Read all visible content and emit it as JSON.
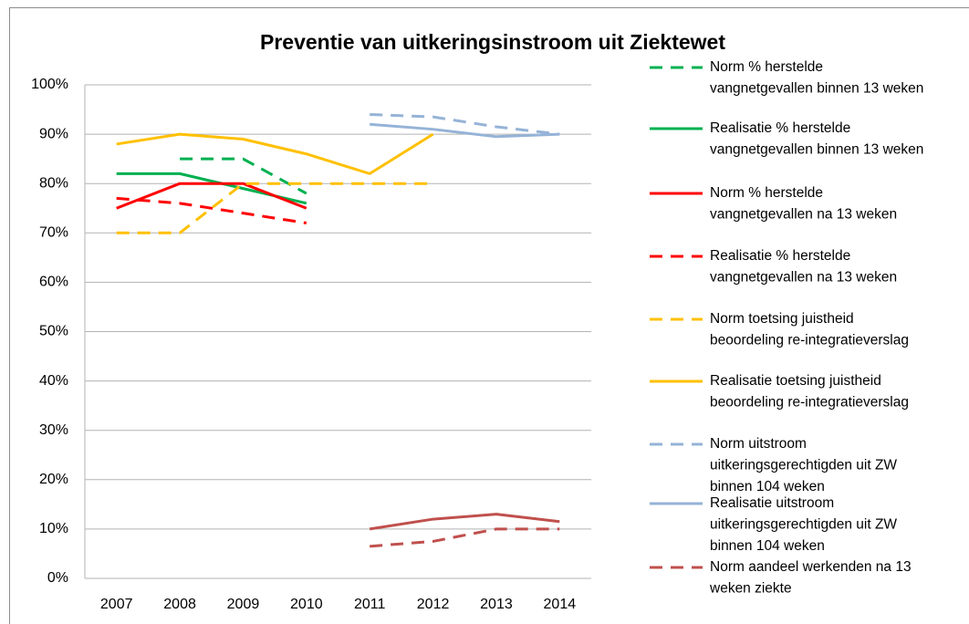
{
  "chart_data": {
    "type": "line",
    "title": "Preventie van uitkeringsinstroom uit Ziektewet",
    "categories": [
      "2007",
      "2008",
      "2009",
      "2010",
      "2011",
      "2012",
      "2013",
      "2014"
    ],
    "ylim": [
      0,
      100
    ],
    "yticks": [
      {
        "value": 0,
        "label": "0%"
      },
      {
        "value": 10,
        "label": "10%"
      },
      {
        "value": 20,
        "label": "20%"
      },
      {
        "value": 30,
        "label": "30%"
      },
      {
        "value": 40,
        "label": "40%"
      },
      {
        "value": 50,
        "label": "50%"
      },
      {
        "value": 60,
        "label": "60%"
      },
      {
        "value": 70,
        "label": "70%"
      },
      {
        "value": 80,
        "label": "80%"
      },
      {
        "value": 90,
        "label": "90%"
      },
      {
        "value": 100,
        "label": "100%"
      }
    ],
    "grid": true,
    "legend": "right",
    "series": [
      {
        "name": [
          "Norm % herstelde",
          "vangnetgevallen binnen 13 weken"
        ],
        "color": "#00b050",
        "dashed": true,
        "values": [
          null,
          85,
          85,
          78,
          null,
          null,
          null,
          null
        ]
      },
      {
        "name": [
          "Realisatie  % herstelde",
          "vangnetgevallen binnen 13 weken"
        ],
        "color": "#00b050",
        "dashed": false,
        "values": [
          82,
          82,
          79,
          76,
          null,
          null,
          null,
          null
        ]
      },
      {
        "name": [
          "Norm % herstelde",
          "vangnetgevallen na 13 weken"
        ],
        "color": "#ff0000",
        "dashed": false,
        "values": [
          75,
          80,
          80,
          75,
          null,
          null,
          null,
          null
        ]
      },
      {
        "name": [
          "Realisatie % herstelde",
          "vangnetgevallen na 13 weken"
        ],
        "color": "#ff0000",
        "dashed": true,
        "values": [
          77,
          76,
          74,
          72,
          null,
          null,
          null,
          null
        ]
      },
      {
        "name": [
          "Norm toetsing juistheid",
          "beoordeling re-integratieverslag"
        ],
        "color": "#ffc000",
        "dashed": true,
        "values": [
          70,
          70,
          80,
          80,
          80,
          80,
          null,
          null
        ]
      },
      {
        "name": [
          "Realisatie toetsing juistheid",
          "beoordeling re-integratieverslag"
        ],
        "color": "#ffc000",
        "dashed": false,
        "values": [
          88,
          90,
          89,
          86,
          82,
          90,
          null,
          null
        ]
      },
      {
        "name": [
          "Norm uitstroom",
          "uitkeringsgerechtigden uit ZW",
          "binnen 104 weken"
        ],
        "color": "#95b3d7",
        "dashed": true,
        "values": [
          null,
          null,
          null,
          null,
          94,
          93.5,
          91.5,
          90
        ]
      },
      {
        "name": [
          "Realisatie uitstroom",
          "uitkeringsgerechtigden uit ZW",
          "binnen 104 weken"
        ],
        "color": "#95b3d7",
        "dashed": false,
        "values": [
          null,
          null,
          null,
          null,
          92,
          91,
          89.5,
          90
        ]
      },
      {
        "name": [
          "Norm aandeel werkenden na 13",
          "weken ziekte"
        ],
        "color": "#c0504d",
        "dashed": true,
        "values": [
          null,
          null,
          null,
          null,
          6.5,
          7.5,
          10,
          10
        ]
      },
      {
        "color": "#c0504d",
        "dashed": false,
        "values": [
          null,
          null,
          null,
          null,
          10,
          12,
          13,
          11.5
        ]
      }
    ]
  }
}
